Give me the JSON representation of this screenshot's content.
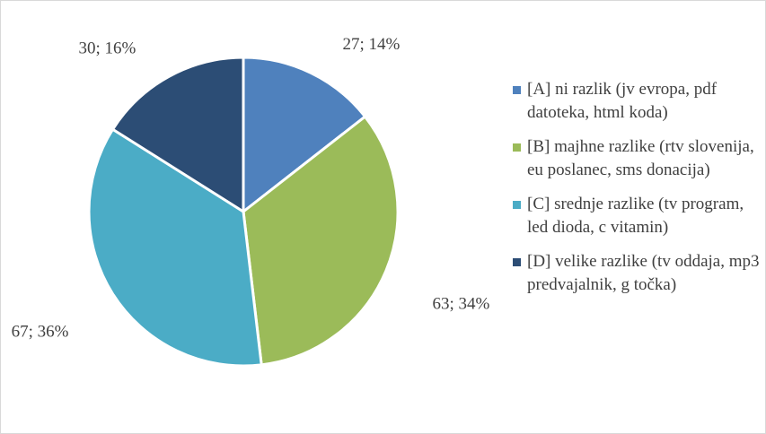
{
  "chart_data": {
    "type": "pie",
    "categories": [
      "[A] ni razlik (jv evropa, pdf datoteka, html koda)",
      "[B] majhne razlike (rtv slovenija, eu poslanec, sms donacija)",
      "[C] srednje razlike (tv program, led dioda, c vitamin)",
      "[D] velike razlike (tv oddaja, mp3 predvajalnik, g točka)"
    ],
    "values": [
      27,
      63,
      67,
      30
    ],
    "value_labels": [
      "27; 14%",
      "63; 34%",
      "67; 36%",
      "30; 16%"
    ],
    "colors": [
      "#4f81bd",
      "#9bbb59",
      "#4bacc6",
      "#2c4d75"
    ],
    "legend": "right"
  }
}
